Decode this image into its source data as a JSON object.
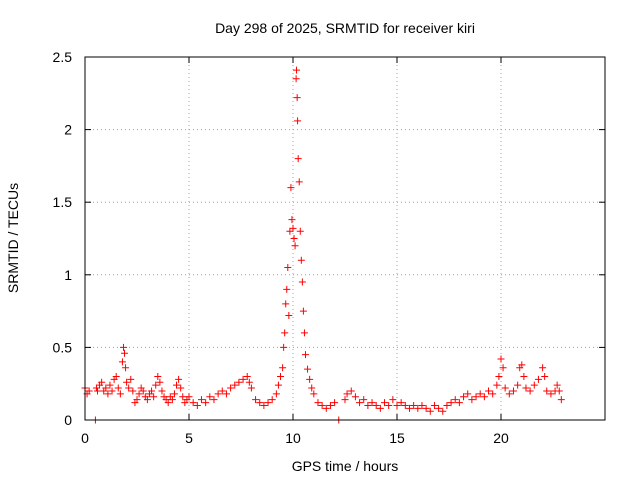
{
  "chart_data": {
    "type": "scatter",
    "title": "Day 298 of 2025, SRMTID for receiver kiri",
    "xlabel": "GPS time / hours",
    "ylabel": "SRMTID / TECUs",
    "xlim": [
      0,
      25
    ],
    "ylim": [
      0,
      2.5
    ],
    "xticks": [
      0,
      5,
      10,
      15,
      20
    ],
    "xtick_labels": [
      "0",
      "5",
      "10",
      "15",
      "20"
    ],
    "yticks": [
      0,
      0.5,
      1,
      1.5,
      2,
      2.5
    ],
    "ytick_labels": [
      "0",
      "0.5",
      "1",
      "1.5",
      "2",
      "2.5"
    ],
    "grid": true,
    "marker": "plus",
    "series": [
      {
        "name": "SRMTID",
        "color": "#ff0000",
        "points": [
          [
            0.0,
            0.22
          ],
          [
            0.1,
            0.18
          ],
          [
            0.2,
            0.2
          ],
          [
            0.5,
            0.0
          ],
          [
            0.55,
            0.22
          ],
          [
            0.6,
            0.2
          ],
          [
            0.7,
            0.24
          ],
          [
            0.8,
            0.26
          ],
          [
            0.9,
            0.2
          ],
          [
            1.0,
            0.22
          ],
          [
            1.1,
            0.18
          ],
          [
            1.2,
            0.24
          ],
          [
            1.3,
            0.2
          ],
          [
            1.4,
            0.28
          ],
          [
            1.5,
            0.3
          ],
          [
            1.6,
            0.22
          ],
          [
            1.7,
            0.18
          ],
          [
            1.8,
            0.4
          ],
          [
            1.85,
            0.5
          ],
          [
            1.9,
            0.46
          ],
          [
            1.95,
            0.36
          ],
          [
            2.0,
            0.26
          ],
          [
            2.1,
            0.22
          ],
          [
            2.2,
            0.28
          ],
          [
            2.3,
            0.2
          ],
          [
            2.4,
            0.12
          ],
          [
            2.5,
            0.14
          ],
          [
            2.6,
            0.18
          ],
          [
            2.7,
            0.22
          ],
          [
            2.8,
            0.2
          ],
          [
            2.9,
            0.16
          ],
          [
            3.0,
            0.14
          ],
          [
            3.1,
            0.18
          ],
          [
            3.2,
            0.2
          ],
          [
            3.3,
            0.16
          ],
          [
            3.4,
            0.24
          ],
          [
            3.5,
            0.3
          ],
          [
            3.6,
            0.26
          ],
          [
            3.7,
            0.2
          ],
          [
            3.8,
            0.16
          ],
          [
            3.9,
            0.14
          ],
          [
            4.0,
            0.12
          ],
          [
            4.1,
            0.16
          ],
          [
            4.2,
            0.14
          ],
          [
            4.3,
            0.18
          ],
          [
            4.4,
            0.24
          ],
          [
            4.5,
            0.28
          ],
          [
            4.6,
            0.22
          ],
          [
            4.7,
            0.16
          ],
          [
            4.8,
            0.12
          ],
          [
            4.9,
            0.14
          ],
          [
            5.0,
            0.16
          ],
          [
            5.2,
            0.12
          ],
          [
            5.4,
            0.1
          ],
          [
            5.6,
            0.14
          ],
          [
            5.8,
            0.12
          ],
          [
            6.0,
            0.16
          ],
          [
            6.2,
            0.14
          ],
          [
            6.4,
            0.18
          ],
          [
            6.6,
            0.2
          ],
          [
            6.8,
            0.18
          ],
          [
            7.0,
            0.22
          ],
          [
            7.2,
            0.24
          ],
          [
            7.4,
            0.26
          ],
          [
            7.6,
            0.28
          ],
          [
            7.8,
            0.3
          ],
          [
            7.9,
            0.26
          ],
          [
            8.0,
            0.22
          ],
          [
            8.2,
            0.14
          ],
          [
            8.4,
            0.12
          ],
          [
            8.6,
            0.1
          ],
          [
            8.8,
            0.12
          ],
          [
            9.0,
            0.14
          ],
          [
            9.2,
            0.18
          ],
          [
            9.3,
            0.24
          ],
          [
            9.4,
            0.3
          ],
          [
            9.5,
            0.36
          ],
          [
            9.55,
            0.5
          ],
          [
            9.6,
            0.6
          ],
          [
            9.65,
            0.8
          ],
          [
            9.7,
            0.9
          ],
          [
            9.75,
            1.05
          ],
          [
            9.8,
            0.72
          ],
          [
            9.85,
            1.3
          ],
          [
            9.9,
            1.6
          ],
          [
            9.95,
            1.38
          ],
          [
            10.0,
            1.32
          ],
          [
            10.05,
            1.25
          ],
          [
            10.1,
            1.2
          ],
          [
            10.15,
            2.35
          ],
          [
            10.17,
            2.41
          ],
          [
            10.2,
            2.22
          ],
          [
            10.22,
            2.06
          ],
          [
            10.25,
            1.8
          ],
          [
            10.3,
            1.64
          ],
          [
            10.35,
            1.3
          ],
          [
            10.4,
            1.1
          ],
          [
            10.45,
            0.95
          ],
          [
            10.5,
            0.75
          ],
          [
            10.55,
            0.6
          ],
          [
            10.6,
            0.45
          ],
          [
            10.7,
            0.35
          ],
          [
            10.8,
            0.28
          ],
          [
            10.9,
            0.22
          ],
          [
            11.0,
            0.18
          ],
          [
            11.2,
            0.12
          ],
          [
            11.4,
            0.1
          ],
          [
            11.6,
            0.08
          ],
          [
            11.8,
            0.1
          ],
          [
            12.0,
            0.12
          ],
          [
            12.2,
            0.0
          ],
          [
            12.5,
            0.14
          ],
          [
            12.6,
            0.18
          ],
          [
            12.8,
            0.2
          ],
          [
            13.0,
            0.16
          ],
          [
            13.2,
            0.12
          ],
          [
            13.4,
            0.14
          ],
          [
            13.6,
            0.1
          ],
          [
            13.8,
            0.12
          ],
          [
            14.0,
            0.1
          ],
          [
            14.2,
            0.08
          ],
          [
            14.4,
            0.12
          ],
          [
            14.6,
            0.1
          ],
          [
            14.8,
            0.14
          ],
          [
            15.0,
            0.1
          ],
          [
            15.2,
            0.12
          ],
          [
            15.4,
            0.1
          ],
          [
            15.6,
            0.08
          ],
          [
            15.8,
            0.1
          ],
          [
            16.0,
            0.08
          ],
          [
            16.2,
            0.1
          ],
          [
            16.4,
            0.08
          ],
          [
            16.6,
            0.06
          ],
          [
            16.8,
            0.1
          ],
          [
            17.0,
            0.08
          ],
          [
            17.2,
            0.06
          ],
          [
            17.4,
            0.1
          ],
          [
            17.6,
            0.12
          ],
          [
            17.8,
            0.14
          ],
          [
            18.0,
            0.12
          ],
          [
            18.2,
            0.16
          ],
          [
            18.4,
            0.18
          ],
          [
            18.6,
            0.14
          ],
          [
            18.8,
            0.16
          ],
          [
            19.0,
            0.18
          ],
          [
            19.2,
            0.16
          ],
          [
            19.4,
            0.2
          ],
          [
            19.6,
            0.18
          ],
          [
            19.8,
            0.24
          ],
          [
            19.9,
            0.3
          ],
          [
            20.0,
            0.42
          ],
          [
            20.1,
            0.36
          ],
          [
            20.2,
            0.22
          ],
          [
            20.4,
            0.18
          ],
          [
            20.6,
            0.2
          ],
          [
            20.8,
            0.24
          ],
          [
            20.9,
            0.36
          ],
          [
            21.0,
            0.38
          ],
          [
            21.1,
            0.3
          ],
          [
            21.2,
            0.22
          ],
          [
            21.4,
            0.2
          ],
          [
            21.6,
            0.24
          ],
          [
            21.8,
            0.28
          ],
          [
            22.0,
            0.36
          ],
          [
            22.1,
            0.3
          ],
          [
            22.2,
            0.2
          ],
          [
            22.4,
            0.18
          ],
          [
            22.6,
            0.2
          ],
          [
            22.7,
            0.24
          ],
          [
            22.8,
            0.2
          ],
          [
            22.9,
            0.14
          ]
        ]
      }
    ]
  }
}
